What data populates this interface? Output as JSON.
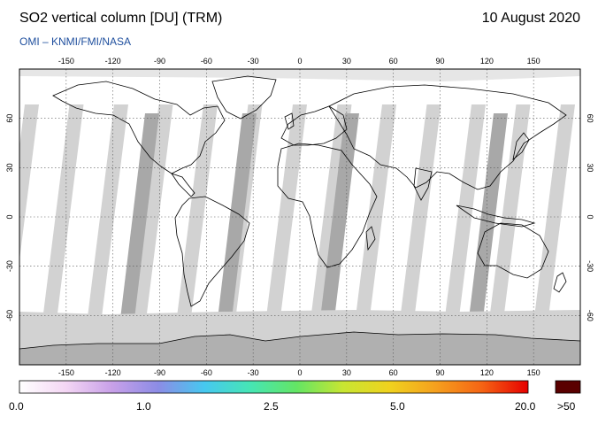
{
  "header": {
    "title": "SO2 vertical column [DU] (TRM)",
    "date": "10 August 2020",
    "source": "OMI  –  KNMI/FMI/NASA"
  },
  "map": {
    "lon_ticks": [
      "-150",
      "-120",
      "-90",
      "-60",
      "-30",
      "0",
      "30",
      "60",
      "90",
      "120",
      "150"
    ],
    "lat_ticks": [
      "60",
      "30",
      "0",
      "-30",
      "-60"
    ],
    "no_data_color": "#d2d2d2",
    "overlap_color": "#a8a8a8",
    "land_outline_color": "#000000"
  },
  "colorbar": {
    "labels": [
      "0.0",
      "1.0",
      "2.5",
      "5.0",
      "20.0"
    ],
    "overflow_label": ">50",
    "overflow_color": "#5a0000",
    "stops": [
      "#ffffff",
      "#f4d6f4",
      "#c8a0e8",
      "#8c8ce6",
      "#46c8f0",
      "#46e6b4",
      "#64e664",
      "#c8e632",
      "#f0d21e",
      "#f5a01e",
      "#f56414",
      "#e60000"
    ]
  }
}
